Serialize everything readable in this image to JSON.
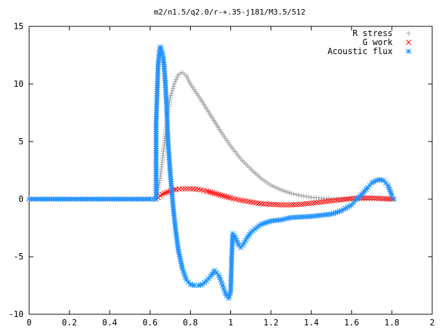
{
  "chart_data": {
    "type": "scatter",
    "title": "m2/n1.5/q2.0/r-+.35-j181/M3.5/512",
    "xlabel": "",
    "ylabel": "",
    "xlim": [
      0,
      2
    ],
    "ylim": [
      -10,
      15
    ],
    "x_ticks": [
      "0",
      "0.2",
      "0.4",
      "0.6",
      "0.8",
      "1",
      "1.2",
      "1.4",
      "1.6",
      "1.8",
      "2"
    ],
    "y_ticks": [
      "15",
      "10",
      "5",
      "0",
      "-5",
      "-10"
    ],
    "x_tick_values": [
      0,
      0.2,
      0.4,
      0.6,
      0.8,
      1.0,
      1.2,
      1.4,
      1.6,
      1.8,
      2.0
    ],
    "y_tick_values": [
      15,
      10,
      5,
      0,
      -5,
      -10
    ],
    "grid": false,
    "legend_position": "top-right",
    "series": [
      {
        "name": "R stress",
        "marker": "plus",
        "color": "#a0a0a0",
        "x": [
          0.0,
          0.1,
          0.2,
          0.3,
          0.4,
          0.5,
          0.6,
          0.63,
          0.64,
          0.65,
          0.66,
          0.67,
          0.68,
          0.69,
          0.7,
          0.72,
          0.74,
          0.76,
          0.78,
          0.8,
          0.85,
          0.9,
          0.95,
          1.0,
          1.05,
          1.1,
          1.15,
          1.2,
          1.25,
          1.3,
          1.35,
          1.4,
          1.45,
          1.5,
          1.55,
          1.6,
          1.65,
          1.7,
          1.75,
          1.8,
          1.81
        ],
        "y": [
          0,
          0,
          0,
          0,
          0,
          0,
          0,
          0,
          0.8,
          1.8,
          3.2,
          4.7,
          6.2,
          7.6,
          8.8,
          10.0,
          10.8,
          11.0,
          10.7,
          10.0,
          8.7,
          7.3,
          5.9,
          4.6,
          3.5,
          2.6,
          1.8,
          1.2,
          0.8,
          0.5,
          0.3,
          0.15,
          0.08,
          0.03,
          0.01,
          0.0,
          0.0,
          0.0,
          0.0,
          0.0,
          0.0
        ]
      },
      {
        "name": "G work",
        "marker": "cross",
        "color": "#ff0000",
        "x": [
          0.63,
          0.65,
          0.67,
          0.7,
          0.73,
          0.76,
          0.8,
          0.84,
          0.88,
          0.92,
          0.96,
          1.0,
          1.05,
          1.1,
          1.15,
          1.2,
          1.25,
          1.3,
          1.35,
          1.4,
          1.45,
          1.5,
          1.55,
          1.6,
          1.65,
          1.7,
          1.75,
          1.8,
          1.81
        ],
        "y": [
          0.0,
          0.3,
          0.5,
          0.7,
          0.85,
          0.9,
          0.9,
          0.85,
          0.7,
          0.5,
          0.3,
          0.1,
          -0.1,
          -0.25,
          -0.4,
          -0.45,
          -0.5,
          -0.5,
          -0.45,
          -0.35,
          -0.25,
          -0.15,
          -0.05,
          0.05,
          0.1,
          0.1,
          0.05,
          0.0,
          0.0
        ]
      },
      {
        "name": "Acoustic flux",
        "marker": "star",
        "color": "#1e90ff",
        "x": [
          0.0,
          0.1,
          0.2,
          0.3,
          0.4,
          0.5,
          0.6,
          0.63,
          0.63,
          0.64,
          0.645,
          0.65,
          0.655,
          0.66,
          0.665,
          0.67,
          0.675,
          0.68,
          0.685,
          0.69,
          0.7,
          0.71,
          0.72,
          0.73,
          0.74,
          0.75,
          0.76,
          0.78,
          0.8,
          0.82,
          0.84,
          0.86,
          0.88,
          0.9,
          0.92,
          0.94,
          0.95,
          0.96,
          0.97,
          0.98,
          0.99,
          1.0,
          1.005,
          1.01,
          1.02,
          1.03,
          1.04,
          1.05,
          1.06,
          1.08,
          1.1,
          1.12,
          1.15,
          1.2,
          1.25,
          1.3,
          1.35,
          1.4,
          1.45,
          1.5,
          1.55,
          1.6,
          1.62,
          1.65,
          1.68,
          1.7,
          1.72,
          1.74,
          1.76,
          1.78,
          1.8,
          1.81
        ],
        "y": [
          0,
          0,
          0,
          0,
          0,
          0,
          0,
          0,
          6.6,
          11.7,
          12.5,
          13.2,
          13.1,
          12.8,
          12.3,
          11.5,
          10.3,
          8.7,
          6.8,
          4.8,
          2.3,
          0.2,
          -1.6,
          -3.1,
          -4.4,
          -5.2,
          -6.0,
          -7.0,
          -7.4,
          -7.5,
          -7.5,
          -7.4,
          -7.1,
          -6.7,
          -6.2,
          -6.6,
          -7.0,
          -7.5,
          -8.0,
          -8.4,
          -8.6,
          -8.0,
          -5.0,
          -3.0,
          -3.2,
          -3.6,
          -4.0,
          -4.2,
          -4.0,
          -3.4,
          -2.9,
          -2.6,
          -2.2,
          -1.9,
          -1.8,
          -1.6,
          -1.55,
          -1.5,
          -1.4,
          -1.3,
          -1.0,
          -0.5,
          -0.1,
          0.4,
          1.0,
          1.4,
          1.6,
          1.7,
          1.6,
          1.2,
          0.3,
          0.0
        ]
      }
    ]
  }
}
